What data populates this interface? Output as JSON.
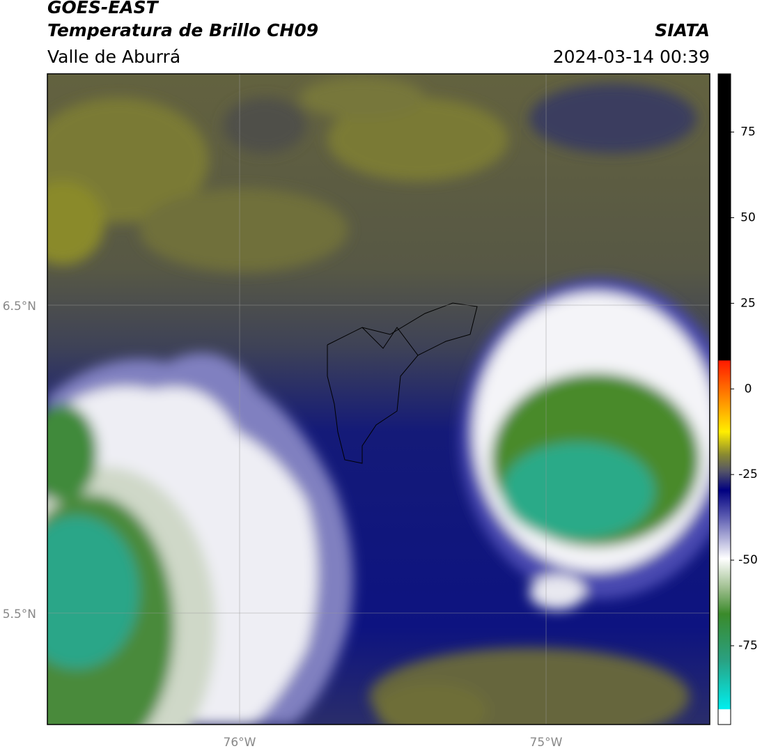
{
  "header": {
    "title": "GOES-EAST",
    "subtitle": "Temperatura de Brillo CH09",
    "region": "Valle de Aburrá",
    "source": "SIATA",
    "timestamp": "2024-03-14 00:39"
  },
  "map": {
    "lat_ticks": [
      "6.5°N",
      "5.5°N"
    ],
    "lon_ticks": [
      "76°W",
      "75°W"
    ]
  },
  "colorbar": {
    "range": [
      -98,
      92
    ],
    "ticks": [
      75,
      50,
      25,
      0,
      -25,
      -50,
      -75
    ]
  }
}
